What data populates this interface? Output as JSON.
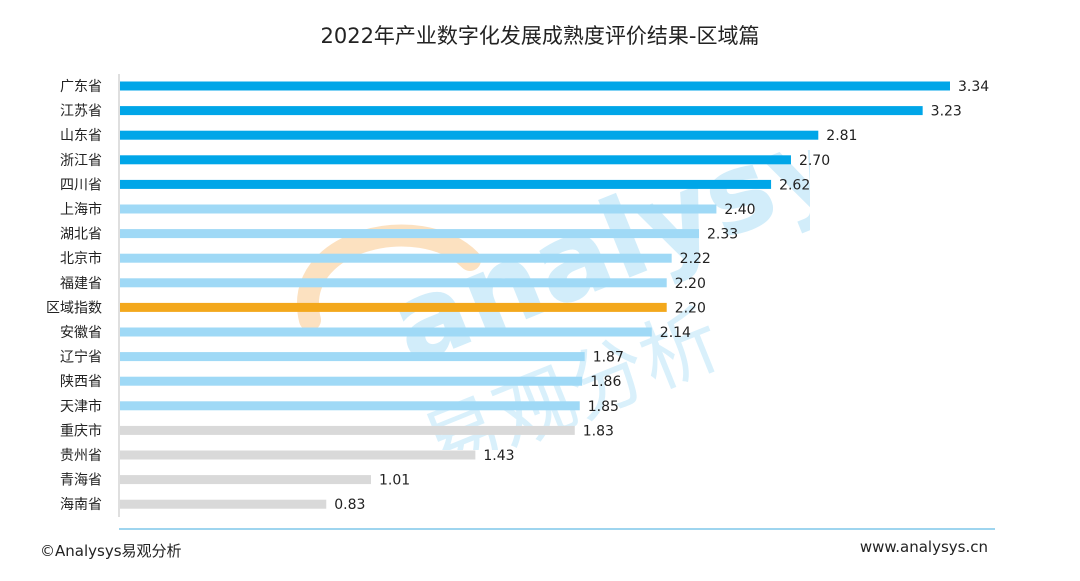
{
  "title": "2022年产业数字化发展成熟度评价结果-区域篇",
  "footer": {
    "copyright": "©Analysys易观分析",
    "website": "www.analysys.cn"
  },
  "watermark": {
    "latin": "analysys",
    "chinese": "易观分析"
  },
  "colors": {
    "top_tier": "#00a6e8",
    "mid_tier": "#9fd9f6",
    "index": "#f3a81c",
    "low_tier": "#d9d9d9",
    "axis": "#bfbfbf",
    "footer_rule": "#7fc7ea"
  },
  "chart_data": {
    "type": "bar",
    "orientation": "horizontal",
    "title": "2022年产业数字化发展成熟度评价结果-区域篇",
    "categories": [
      "广东省",
      "江苏省",
      "山东省",
      "浙江省",
      "四川省",
      "上海市",
      "湖北省",
      "北京市",
      "福建省",
      "区域指数",
      "安徽省",
      "辽宁省",
      "陕西省",
      "天津市",
      "重庆市",
      "贵州省",
      "青海省",
      "海南省"
    ],
    "values": [
      3.34,
      3.23,
      2.81,
      2.7,
      2.62,
      2.4,
      2.33,
      2.22,
      2.2,
      2.2,
      2.14,
      1.87,
      1.86,
      1.85,
      1.83,
      1.43,
      1.01,
      0.83
    ],
    "value_labels": [
      "3.34",
      "3.23",
      "2.81",
      "2.70",
      "2.62",
      "2.40",
      "2.33",
      "2.22",
      "2.20",
      "2.20",
      "2.14",
      "1.87",
      "1.86",
      "1.85",
      "1.83",
      "1.43",
      "1.01",
      "0.83"
    ],
    "tiers": [
      "top",
      "top",
      "top",
      "top",
      "top",
      "mid",
      "mid",
      "mid",
      "mid",
      "index",
      "mid",
      "mid",
      "mid",
      "mid",
      "low",
      "low",
      "low",
      "low"
    ],
    "xlim": [
      0,
      3.34
    ],
    "grid": false,
    "legend": "none"
  }
}
